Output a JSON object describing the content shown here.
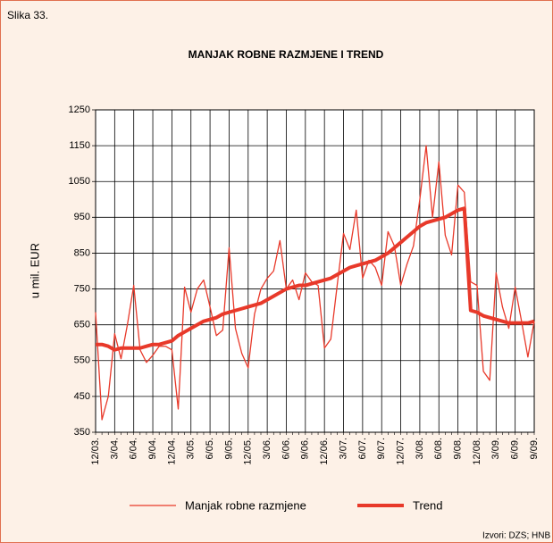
{
  "header": "Slika 33.",
  "source": "Izvori: DZS; HNB",
  "chart_data": {
    "type": "line",
    "title": "MANJAK ROBNE RAZMJENE I TREND",
    "ylabel": "u mil. EUR",
    "categories": [
      "12/03.",
      null,
      null,
      "3/04.",
      null,
      null,
      "6/04.",
      null,
      null,
      "9/04.",
      null,
      null,
      "12/04.",
      null,
      null,
      "3/05.",
      null,
      null,
      "6/05.",
      null,
      null,
      "9/05.",
      null,
      null,
      "12/05.",
      null,
      null,
      "3/06.",
      null,
      null,
      "6/06.",
      null,
      null,
      "9/06.",
      null,
      null,
      "12/06.",
      null,
      null,
      "3/07.",
      null,
      null,
      "6/07.",
      null,
      null,
      "9/07.",
      null,
      null,
      "12/07.",
      null,
      null,
      "3/08.",
      null,
      null,
      "6/08.",
      null,
      null,
      "9/08.",
      null,
      null,
      "12/08.",
      null,
      null,
      "3/09.",
      null,
      null,
      "6/09.",
      null,
      null,
      "9/09."
    ],
    "series": [
      {
        "name": "Manjak robne razmjene",
        "color": "#e8392a",
        "width": 1.3,
        "values": [
          685,
          385,
          450,
          625,
          555,
          650,
          760,
          580,
          545,
          565,
          590,
          590,
          580,
          415,
          755,
          685,
          750,
          775,
          700,
          620,
          635,
          865,
          640,
          570,
          530,
          680,
          750,
          780,
          800,
          885,
          750,
          775,
          720,
          795,
          770,
          760,
          585,
          610,
          760,
          905,
          860,
          970,
          780,
          830,
          810,
          760,
          910,
          870,
          760,
          820,
          870,
          1000,
          1150,
          950,
          1105,
          900,
          845,
          1040,
          1020,
          770,
          760,
          520,
          495,
          795,
          700,
          640,
          755,
          660,
          560,
          660
        ]
      },
      {
        "name": "Trend",
        "color": "#e8392a",
        "width": 4,
        "values": [
          595,
          595,
          590,
          580,
          585,
          585,
          585,
          585,
          590,
          595,
          595,
          600,
          605,
          620,
          630,
          640,
          650,
          660,
          665,
          670,
          680,
          685,
          690,
          695,
          700,
          705,
          710,
          720,
          730,
          740,
          750,
          755,
          760,
          760,
          765,
          770,
          775,
          780,
          790,
          800,
          810,
          815,
          820,
          825,
          830,
          840,
          850,
          865,
          880,
          895,
          910,
          925,
          935,
          940,
          945,
          950,
          960,
          970,
          975,
          690,
          685,
          675,
          670,
          665,
          660,
          655,
          655,
          655,
          655,
          660
        ]
      }
    ],
    "ylim": [
      350,
      1250
    ],
    "yticks": [
      350,
      450,
      550,
      650,
      750,
      850,
      950,
      1050,
      1150,
      1250
    ],
    "grid": true
  }
}
